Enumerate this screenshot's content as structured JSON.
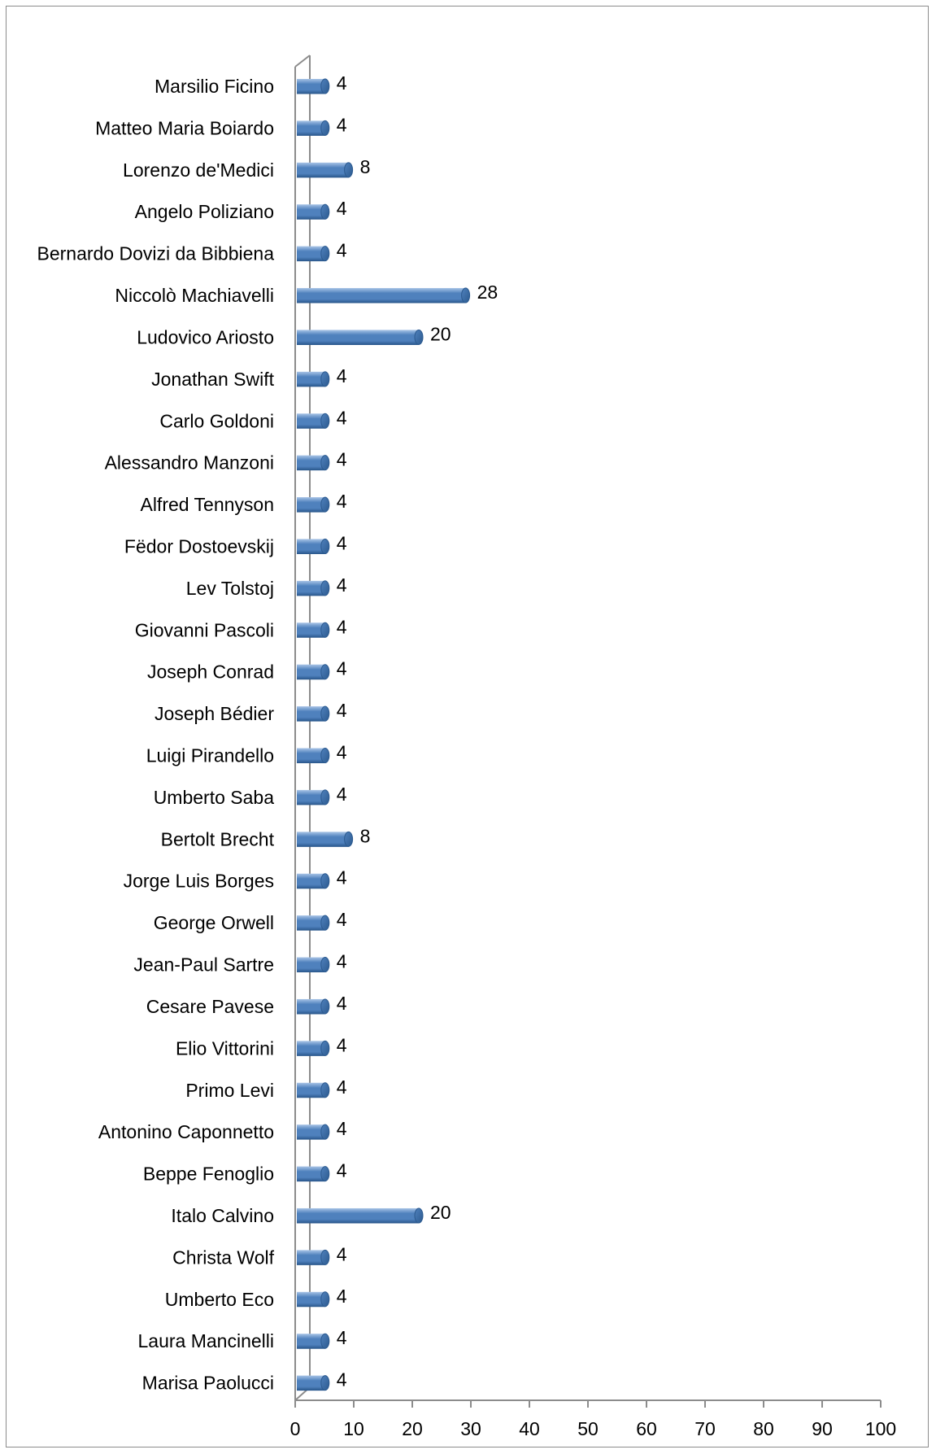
{
  "chart_data": {
    "type": "bar",
    "orientation": "horizontal",
    "style": "3d-cylinder",
    "categories": [
      "Marsilio Ficino",
      "Matteo Maria Boiardo",
      "Lorenzo de'Medici",
      "Angelo Poliziano",
      "Bernardo Dovizi da Bibbiena",
      "Niccolò Machiavelli",
      "Ludovico Ariosto",
      "Jonathan Swift",
      "Carlo Goldoni",
      "Alessandro Manzoni",
      "Alfred Tennyson",
      "Fëdor Dostoevskij",
      "Lev Tolstoj",
      "Giovanni Pascoli",
      "Joseph Conrad",
      "Joseph Bédier",
      "Luigi Pirandello",
      "Umberto Saba",
      "Bertolt Brecht",
      "Jorge Luis Borges",
      "George Orwell",
      "Jean-Paul Sartre",
      "Cesare Pavese",
      "Elio Vittorini",
      "Primo Levi",
      "Antonino Caponnetto",
      "Beppe Fenoglio",
      "Italo Calvino",
      "Christa Wolf",
      "Umberto Eco",
      "Laura Mancinelli",
      "Marisa Paolucci"
    ],
    "values": [
      4,
      4,
      8,
      4,
      4,
      28,
      20,
      4,
      4,
      4,
      4,
      4,
      4,
      4,
      4,
      4,
      4,
      4,
      8,
      4,
      4,
      4,
      4,
      4,
      4,
      4,
      4,
      20,
      4,
      4,
      4,
      4
    ],
    "data_labels": [
      "4",
      "4",
      "8",
      "4",
      "4",
      "28",
      "20",
      "4",
      "4",
      "4",
      "4",
      "4",
      "4",
      "4",
      "4",
      "4",
      "4",
      "4",
      "8",
      "4",
      "4",
      "4",
      "4",
      "4",
      "4",
      "4",
      "4",
      "20",
      "4",
      "4",
      "4",
      "4"
    ],
    "xlim": [
      0,
      100
    ],
    "xticks": [
      "0",
      "10",
      "20",
      "30",
      "40",
      "50",
      "60",
      "70",
      "80",
      "90",
      "100"
    ],
    "title": "",
    "xlabel": "",
    "ylabel": "",
    "grid": false,
    "legend": "none",
    "colors": {
      "bar": "#4f81bd",
      "bar_light": "#a7c3e6",
      "bar_dark": "#2c5a8f",
      "axis": "#8c8c8c"
    }
  }
}
